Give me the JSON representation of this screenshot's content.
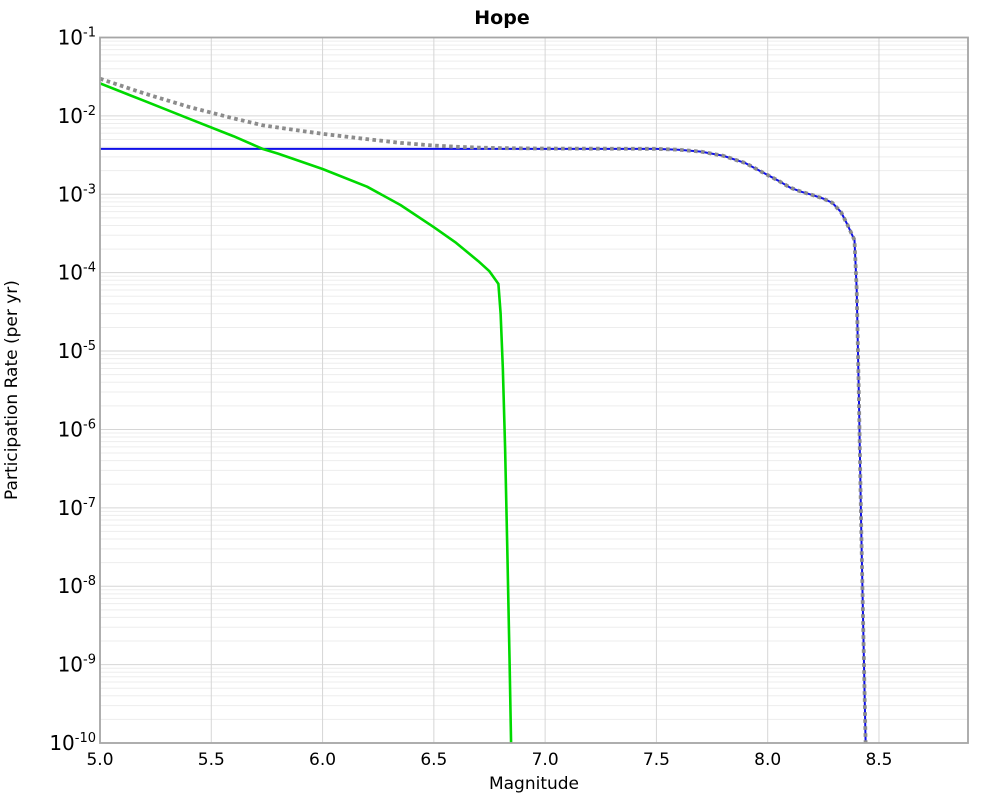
{
  "chart_data": {
    "type": "line",
    "title": "Hope",
    "xlabel": "Magnitude",
    "ylabel": "Participation Rate (per yr)",
    "xlim": [
      5.0,
      8.9
    ],
    "ylim": [
      1e-10,
      0.1
    ],
    "y_scale": "log",
    "grid": true,
    "legend": "none",
    "x_tick_labels": [
      "5.0",
      "5.5",
      "6.0",
      "6.5",
      "7.0",
      "7.5",
      "8.0",
      "8.5"
    ],
    "x_tick_values": [
      5.0,
      5.5,
      6.0,
      6.5,
      7.0,
      7.5,
      8.0,
      8.5
    ],
    "y_tick_exponents": [
      -1,
      -2,
      -3,
      -4,
      -5,
      -6,
      -7,
      -8,
      -9,
      -10
    ],
    "y_tick_base": "10",
    "colors": {
      "gray_dotted": "#8c8c8c",
      "blue_solid": "#0f0fe8",
      "green_solid": "#00d900",
      "grid_major": "#d6d6d6",
      "grid_minor": "#ededed",
      "frame": "#a6a6a6",
      "background": "#ffffff"
    },
    "series": [
      {
        "name": "blue-solid",
        "color": "#0f0fe8",
        "style": "solid",
        "width": 2.0,
        "points": [
          [
            5.0,
            0.0038
          ],
          [
            7.5,
            0.0038
          ],
          [
            7.6,
            0.0037
          ],
          [
            7.7,
            0.0035
          ],
          [
            7.8,
            0.0031
          ],
          [
            7.9,
            0.0025
          ],
          [
            7.97,
            0.00195
          ],
          [
            8.05,
            0.00148
          ],
          [
            8.1,
            0.00122
          ],
          [
            8.15,
            0.00108
          ],
          [
            8.2,
            0.00098
          ],
          [
            8.25,
            0.00088
          ],
          [
            8.29,
            0.00078
          ],
          [
            8.33,
            0.00059
          ],
          [
            8.36,
            0.0004
          ],
          [
            8.39,
            0.00026
          ],
          [
            8.4,
            6e-05
          ],
          [
            8.41,
            2.4e-06
          ],
          [
            8.42,
            6e-08
          ],
          [
            8.43,
            2.4e-09
          ],
          [
            8.44,
            1e-10
          ]
        ]
      },
      {
        "name": "green-solid",
        "color": "#00d900",
        "style": "solid",
        "width": 2.6,
        "points": [
          [
            5.0,
            0.026
          ],
          [
            5.2,
            0.0155
          ],
          [
            5.4,
            0.0092
          ],
          [
            5.6,
            0.0055
          ],
          [
            5.73,
            0.0038
          ],
          [
            5.8,
            0.0033
          ],
          [
            6.0,
            0.0021
          ],
          [
            6.2,
            0.00125
          ],
          [
            6.35,
            0.00073
          ],
          [
            6.5,
            0.00038
          ],
          [
            6.6,
            0.00024
          ],
          [
            6.7,
            0.00014
          ],
          [
            6.75,
            0.000104
          ],
          [
            6.79,
            7.2e-05
          ],
          [
            6.8,
            3e-05
          ],
          [
            6.81,
            6e-06
          ],
          [
            6.82,
            6e-07
          ],
          [
            6.83,
            3e-08
          ],
          [
            6.84,
            1.2e-09
          ],
          [
            6.847,
            1e-10
          ]
        ]
      },
      {
        "name": "gray-dotted",
        "color": "#8c8c8c",
        "style": "dotted",
        "width": 3.8,
        "points": [
          [
            5.0,
            0.0298
          ],
          [
            5.2,
            0.0193
          ],
          [
            5.4,
            0.013
          ],
          [
            5.6,
            0.0093
          ],
          [
            5.73,
            0.0076
          ],
          [
            5.8,
            0.0071
          ],
          [
            6.0,
            0.0059
          ],
          [
            6.2,
            0.00505
          ],
          [
            6.35,
            0.00453
          ],
          [
            6.5,
            0.00418
          ],
          [
            6.6,
            0.00404
          ],
          [
            6.7,
            0.00394
          ],
          [
            6.8,
            0.00388
          ],
          [
            7.0,
            0.00383
          ],
          [
            7.5,
            0.0038
          ],
          [
            7.6,
            0.0037
          ],
          [
            7.7,
            0.0035
          ],
          [
            7.8,
            0.0031
          ],
          [
            7.9,
            0.0025
          ],
          [
            7.97,
            0.00195
          ],
          [
            8.05,
            0.00148
          ],
          [
            8.1,
            0.00122
          ],
          [
            8.15,
            0.00108
          ],
          [
            8.2,
            0.00098
          ],
          [
            8.25,
            0.00088
          ],
          [
            8.29,
            0.00078
          ],
          [
            8.33,
            0.00059
          ],
          [
            8.36,
            0.0004
          ],
          [
            8.39,
            0.00026
          ],
          [
            8.4,
            6e-05
          ],
          [
            8.41,
            2.4e-06
          ],
          [
            8.42,
            6e-08
          ],
          [
            8.43,
            2.4e-09
          ],
          [
            8.44,
            1e-10
          ]
        ]
      }
    ]
  }
}
